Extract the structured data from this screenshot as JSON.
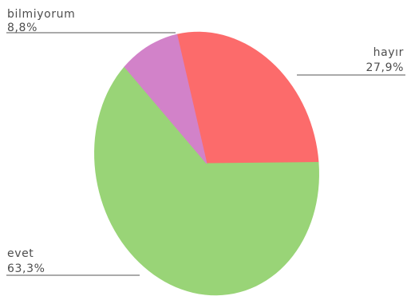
{
  "chart_data": {
    "type": "pie",
    "title": "",
    "slices": [
      {
        "label": "hayır",
        "value": 27.9,
        "value_label": "27,9%",
        "color": "#fc6b6b"
      },
      {
        "label": "evet",
        "value": 63.3,
        "value_label": "63,3%",
        "color": "#99d477"
      },
      {
        "label": "bilmiyorum",
        "value": 8.8,
        "value_label": "8,8%",
        "color": "#d282c9"
      }
    ],
    "start": "12 o'clock",
    "direction": "clockwise",
    "legend": "none"
  }
}
